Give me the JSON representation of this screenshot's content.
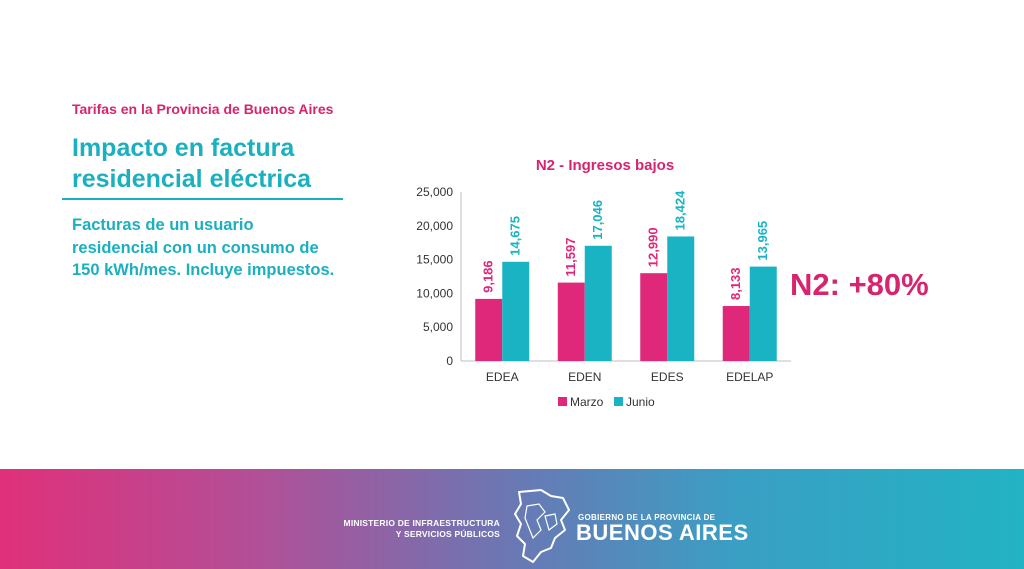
{
  "header": {
    "kicker": "Tarifas en la Provincia de Buenos Aires",
    "title": "Impacto en factura residencial eléctrica",
    "description": "Facturas de un usuario residencial con un consumo de 150 kWh/mes. Incluye impuestos."
  },
  "highlight": "N2: +80%",
  "footer": {
    "ministry_line1": "MINISTERIO DE INFRAESTRUCTURA",
    "ministry_line2": "Y SERVICIOS PÚBLICOS",
    "gov_small": "GOBIERNO DE LA PROVINCIA DE",
    "gov_big": "BUENOS AIRES",
    "emblem_icon": "province-map-icon"
  },
  "colors": {
    "pink": "#d6246e",
    "teal": "#1ab0bf"
  },
  "chart_data": {
    "type": "bar",
    "title": "N2 - Ingresos bajos",
    "categories": [
      "EDEA",
      "EDEN",
      "EDES",
      "EDELAP"
    ],
    "series": [
      {
        "name": "Marzo",
        "color": "#e0287a",
        "values": [
          9186,
          11597,
          12990,
          8133
        ],
        "labels": [
          "9,186",
          "11,597",
          "12,990",
          "8,133"
        ]
      },
      {
        "name": "Junio",
        "color": "#1ab3c4",
        "values": [
          14675,
          17046,
          18424,
          13965
        ],
        "labels": [
          "14,675",
          "17,046",
          "18,424",
          "13,965"
        ]
      }
    ],
    "ylim": [
      0,
      25000
    ],
    "yticks": [
      "0",
      "5,000",
      "10,000",
      "15,000",
      "20,000",
      "25,000"
    ],
    "xlabel": "",
    "ylabel": "",
    "grid": false,
    "legend": "bottom"
  }
}
